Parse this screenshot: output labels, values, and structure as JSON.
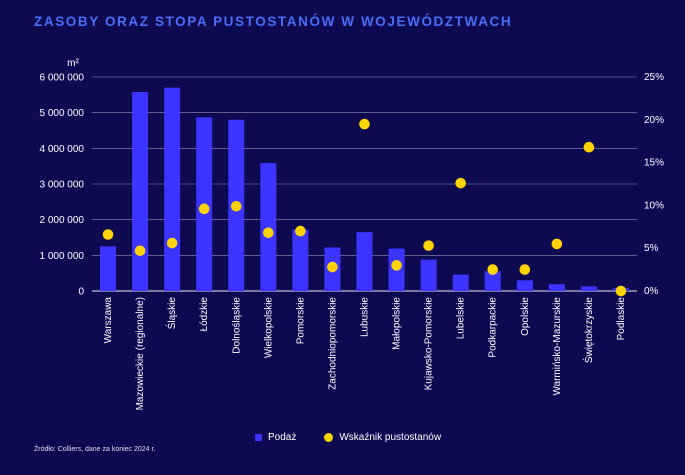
{
  "title": "ZASOBY ORAZ STOPA PUSTOSTANÓW W WOJEWÓDZTWACH",
  "source": "Źródło: Colliers, dane za koniec 2024 r.",
  "colors": {
    "background": "#0d0a52",
    "title": "#4a6cf7",
    "bar": "#3b35ff",
    "dot": "#ffd400",
    "label_dim": "#b9b4dd"
  },
  "chart_data": {
    "type": "bar",
    "unit_label": "m²",
    "categories": [
      "Warszawa",
      "Mazowieckie (regionalne)",
      "Śląskie",
      "Łódzkie",
      "Dolnośląskie",
      "Wielkopolskie",
      "Pomorskie",
      "Zachodniopomorskie",
      "Lubuskie",
      "Małopolskie",
      "Kujawsko-Pomorskie",
      "Lubelskie",
      "Podkarpackie",
      "Opolskie",
      "Warmińsko-Mazurskie",
      "Świętokrzyskie",
      "Podlaskie"
    ],
    "dim_categories": [
      "Śląskie",
      "Dolnośląskie",
      "Małopolskie",
      "Warmińsko-Mazurskie",
      "Świętokrzyskie"
    ],
    "series": [
      {
        "name": "Podaż",
        "axis": "left",
        "values": [
          1250000,
          5580000,
          5700000,
          4870000,
          4800000,
          3590000,
          1720000,
          1220000,
          1650000,
          1190000,
          880000,
          460000,
          550000,
          300000,
          190000,
          130000,
          80000
        ]
      },
      {
        "name": "Wskaźnik pustostanów",
        "axis": "right",
        "type": "scatter",
        "values": [
          6.6,
          4.7,
          5.6,
          9.6,
          9.9,
          6.8,
          7.0,
          2.8,
          19.5,
          3.0,
          5.3,
          12.6,
          2.5,
          2.5,
          5.5,
          16.8,
          0.0
        ]
      }
    ],
    "y_left": {
      "range": [
        0,
        6000000
      ],
      "ticks": [
        0,
        1000000,
        2000000,
        3000000,
        4000000,
        5000000,
        6000000
      ],
      "tick_labels": [
        "0",
        "1 000 000",
        "2 000 000",
        "3 000 000",
        "4 000 000",
        "5 000 000",
        "6 000 000"
      ]
    },
    "y_right": {
      "range": [
        0,
        25
      ],
      "ticks": [
        0,
        5,
        10,
        15,
        20,
        25
      ],
      "tick_labels": [
        "0%",
        "5%",
        "10%",
        "15%",
        "20%",
        "25%"
      ]
    },
    "grid": true,
    "legend": {
      "placement": "bottom",
      "items": [
        {
          "label": "Podaż",
          "marker": "bar"
        },
        {
          "label": "Wskaźnik pustostanów",
          "marker": "dot"
        }
      ]
    }
  }
}
